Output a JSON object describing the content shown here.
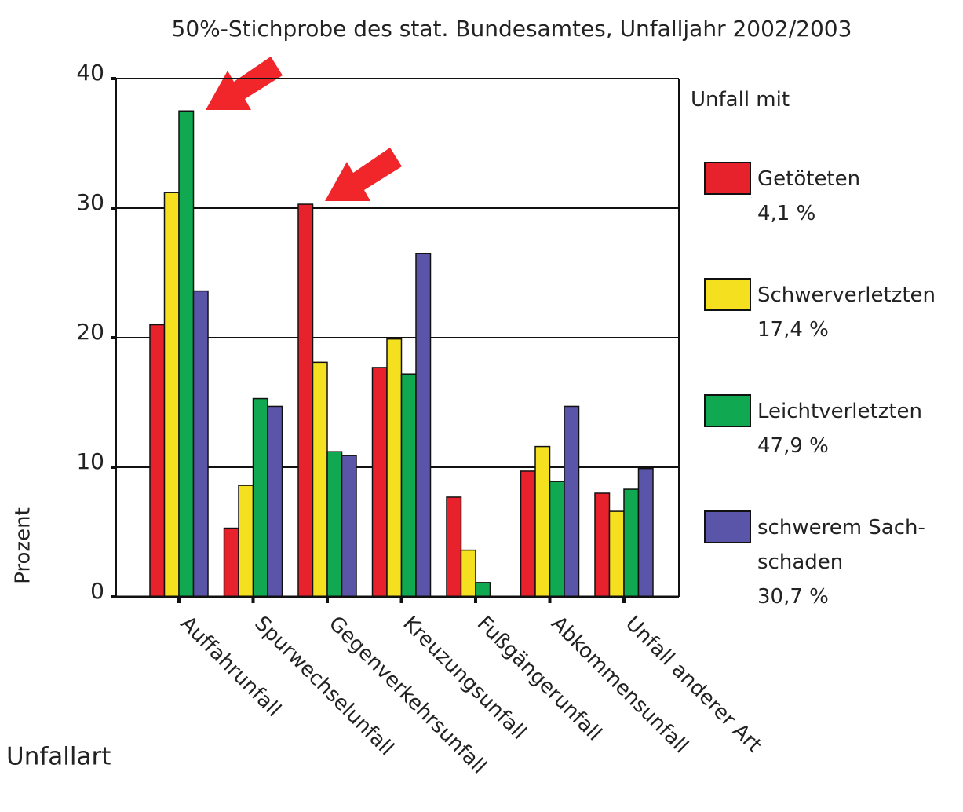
{
  "chart_data": {
    "type": "bar",
    "title": "50%-Stichprobe des stat. Bundesamtes, Unfalljahr 2002/2003",
    "y_label": "Prozent",
    "x_label": "Unfallart",
    "legend_title": "Unfall mit",
    "categories": [
      "Auffahrunfall",
      "Spurwechselunfall",
      "Gegenverkehrsunfall",
      "Kreuzungsunfall",
      "Fußgängerunfall",
      "Abkommensunfall",
      "Unfall anderer Art"
    ],
    "series": [
      {
        "name": "Getöteten",
        "share": "4,1 %",
        "color": "#e8222d",
        "values": [
          21,
          5.3,
          30.3,
          17.7,
          7.7,
          9.7,
          8.0
        ]
      },
      {
        "name": "Schwerverletzten",
        "share": "17,4 %",
        "color": "#f5e020",
        "values": [
          31.2,
          8.6,
          18.1,
          19.9,
          3.6,
          11.6,
          6.6
        ]
      },
      {
        "name": "Leichtverletzten",
        "share": "47,9 %",
        "color": "#10a850",
        "values": [
          37.5,
          15.3,
          11.2,
          17.2,
          1.1,
          8.9,
          8.3
        ]
      },
      {
        "name": "schwerem Sach-schaden",
        "share": "30,7 %",
        "color": "#5a55a8",
        "values": [
          23.6,
          14.7,
          10.9,
          26.5,
          0,
          14.7,
          9.9
        ]
      }
    ],
    "ylim": [
      0,
      40
    ],
    "yticks": [
      0,
      10,
      20,
      30,
      40
    ],
    "grid": true,
    "legend": "right"
  }
}
